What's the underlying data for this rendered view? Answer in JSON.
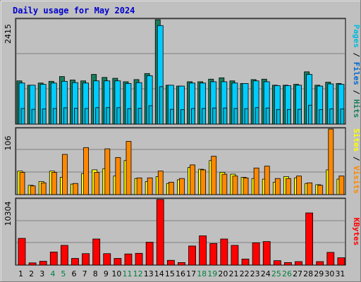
{
  "title": "Daily usage for May 2024",
  "colors": {
    "frame": "#c0c0c0",
    "plot": "#c0c0c0",
    "title": "#0000cc",
    "hits": "#1a7c5c",
    "files": "#00ccff",
    "pages": "#00bbdd",
    "visits": "#ff8800",
    "sites": "#ffff00",
    "kbytes": "#ff0000",
    "weekend": "#008040"
  },
  "chart_data": [
    {
      "type": "bar",
      "name": "hits-files-pages",
      "ymax_label": "2415",
      "ymax": 2415,
      "axis_labels": [
        {
          "text": "Pages",
          "color": "#00bbdd"
        },
        {
          "text": " / ",
          "color": "#000000"
        },
        {
          "text": "Files",
          "color": "#0066cc"
        },
        {
          "text": " / ",
          "color": "#000000"
        },
        {
          "text": "Hits",
          "color": "#1a7c5c"
        }
      ],
      "series": [
        {
          "name": "Hits",
          "values": [
            1000,
            900,
            950,
            990,
            1100,
            1020,
            1000,
            1150,
            1080,
            1060,
            980,
            1030,
            1170,
            2415,
            900,
            880,
            980,
            980,
            1040,
            1070,
            1000,
            940,
            1030,
            1040,
            900,
            900,
            920,
            1210,
            900,
            970,
            940
          ]
        },
        {
          "name": "Files",
          "values": [
            950,
            900,
            920,
            950,
            990,
            960,
            950,
            1000,
            1000,
            1000,
            940,
            960,
            1120,
            2280,
            900,
            880,
            950,
            950,
            980,
            980,
            950,
            940,
            1000,
            980,
            890,
            890,
            900,
            1150,
            880,
            930,
            920
          ]
        }
      ]
    },
    {
      "type": "bar",
      "name": "visits-sites",
      "ymax_label": "106",
      "ymax": 106,
      "axis_labels": [
        {
          "text": "Sites",
          "color": "#ffff00"
        },
        {
          "text": " / ",
          "color": "#000000"
        },
        {
          "text": "Visits",
          "color": "#ff8800"
        }
      ],
      "series": [
        {
          "name": "Visits",
          "values": [
            36,
            14,
            19,
            36,
            65,
            18,
            76,
            36,
            74,
            60,
            86,
            27,
            27,
            38,
            20,
            26,
            48,
            40,
            62,
            33,
            30,
            27,
            43,
            46,
            26,
            26,
            30,
            19,
            15,
            106,
            30
          ]
        },
        {
          "name": "Sites",
          "values": [
            38,
            15,
            21,
            38,
            28,
            17,
            34,
            40,
            42,
            30,
            55,
            26,
            21,
            29,
            18,
            24,
            44,
            41,
            55,
            36,
            33,
            28,
            26,
            25,
            20,
            29,
            27,
            18,
            16,
            40,
            25
          ]
        }
      ]
    },
    {
      "type": "bar",
      "name": "kbytes",
      "ymax_label": "10304",
      "ymax": 10304,
      "axis_labels": [
        {
          "text": "KBytes",
          "color": "#ff0000"
        }
      ],
      "series": [
        {
          "name": "KBytes",
          "values": [
            4200,
            350,
            600,
            2050,
            3100,
            1050,
            1800,
            4100,
            1800,
            1050,
            1750,
            1850,
            3600,
            10304,
            750,
            400,
            3000,
            4600,
            3400,
            4100,
            3100,
            950,
            3500,
            3700,
            700,
            400,
            550,
            8200,
            550,
            2000,
            1150
          ]
        }
      ]
    }
  ],
  "days": [
    "1",
    "2",
    "3",
    "4",
    "5",
    "6",
    "7",
    "8",
    "9",
    "10",
    "11",
    "12",
    "13",
    "14",
    "15",
    "16",
    "17",
    "18",
    "19",
    "20",
    "21",
    "22",
    "23",
    "24",
    "25",
    "26",
    "27",
    "28",
    "29",
    "30",
    "31"
  ],
  "weekend_days": [
    4,
    5,
    11,
    12,
    18,
    19,
    25,
    26
  ]
}
